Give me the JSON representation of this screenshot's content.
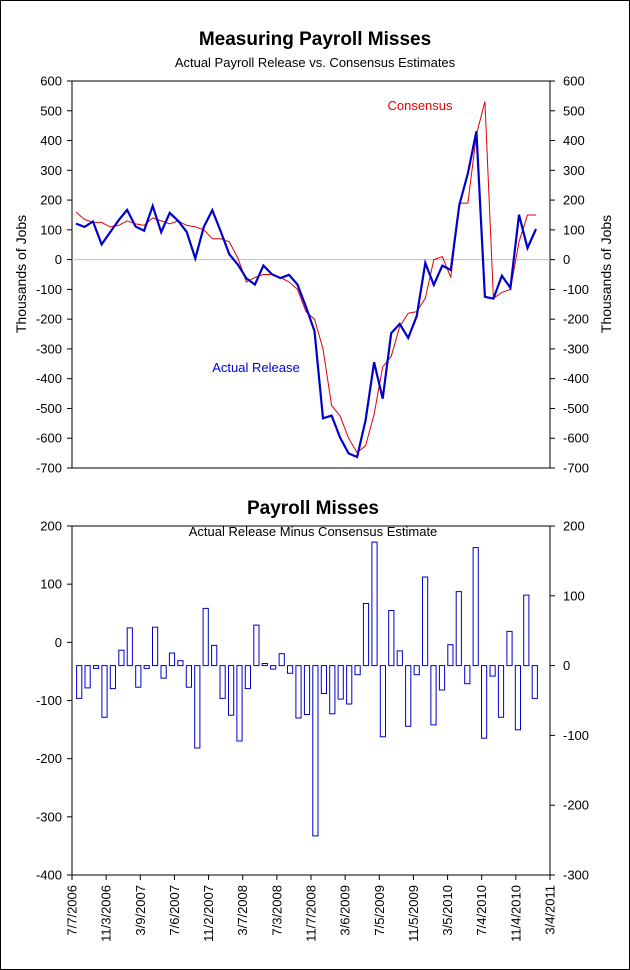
{
  "chart_data": [
    {
      "type": "line",
      "title": "Measuring Payroll Misses",
      "subtitle": "Actual Payroll Release vs. Consensus Estimates",
      "ylabel_left": "Thousands of Jobs",
      "ylabel_right": "Thousands of Jobs",
      "ylim": [
        -700,
        600
      ],
      "y_ticks": [
        600,
        500,
        400,
        300,
        200,
        100,
        0,
        -100,
        -200,
        -300,
        -400,
        -500,
        -600,
        -700
      ],
      "grid": false,
      "zero_line": true,
      "series": [
        {
          "name": "Actual Release",
          "color": "#0000cc",
          "values": [
            121,
            110,
            128,
            51,
            92,
            132,
            167,
            111,
            97,
            180,
            92,
            157,
            130,
            93,
            4,
            110,
            166,
            94,
            18,
            -17,
            -63,
            -84,
            -20,
            -49,
            -62,
            -51,
            -84,
            -159,
            -240,
            -533,
            -524,
            -598,
            -651,
            -663,
            -539,
            -345,
            -467,
            -247,
            -216,
            -263,
            -190,
            -11,
            -85,
            -20,
            -35,
            183,
            290,
            431,
            -125,
            -131,
            -54,
            -95,
            151,
            39,
            103
          ]
        },
        {
          "name": "Consensus",
          "color": "#e00000",
          "values": [
            160,
            135,
            125,
            125,
            110,
            115,
            130,
            120,
            115,
            140,
            130,
            120,
            130,
            115,
            110,
            100,
            70,
            70,
            60,
            5,
            -75,
            -60,
            -50,
            -50,
            -60,
            -75,
            -100,
            -175,
            -200,
            -300,
            -490,
            -525,
            -600,
            -648,
            -625,
            -520,
            -360,
            -325,
            -225,
            -180,
            -175,
            -130,
            0,
            10,
            -60,
            190,
            190,
            420,
            531,
            -130,
            -110,
            -100,
            60,
            150,
            150
          ]
        }
      ],
      "annotations": [
        "Consensus",
        "Actual Release"
      ]
    },
    {
      "type": "bar",
      "title": "Payroll Misses",
      "subtitle": "Actual Release Minus Consensus Estimate",
      "ylim_left": [
        -400,
        200
      ],
      "y_ticks_left": [
        200,
        100,
        0,
        -100,
        -200,
        -300,
        -400
      ],
      "ylim_right": [
        -300,
        200
      ],
      "y_ticks_right": [
        200,
        100,
        0,
        -100,
        -200,
        -300
      ],
      "x_tick_labels": [
        "7/7/2006",
        "11/3/2006",
        "3/9/2007",
        "7/6/2007",
        "11/2/2007",
        "3/7/2008",
        "7/3/2008",
        "11/7/2008",
        "3/6/2009",
        "7/5/2009",
        "11/5/2009",
        "3/5/2010",
        "7/4/2010",
        "11/4/2010",
        "3/4/2011"
      ],
      "series": [
        {
          "name": "",
          "color": "#0000cc",
          "values": [
            -47,
            -32,
            -4,
            -74,
            -33,
            22,
            54,
            -31,
            -4,
            55,
            -18,
            18,
            7,
            -31,
            -118,
            82,
            29,
            -47,
            -71,
            -108,
            -33,
            58,
            3,
            -5,
            17,
            -11,
            -75,
            -70,
            -244,
            -40,
            -69,
            -48,
            -55,
            -13,
            89,
            177,
            -102,
            79,
            21,
            -87,
            -13,
            127,
            -85,
            -35,
            30,
            106,
            -26,
            169,
            -104,
            -15,
            -74,
            49,
            -92,
            101,
            -47
          ]
        }
      ]
    }
  ]
}
